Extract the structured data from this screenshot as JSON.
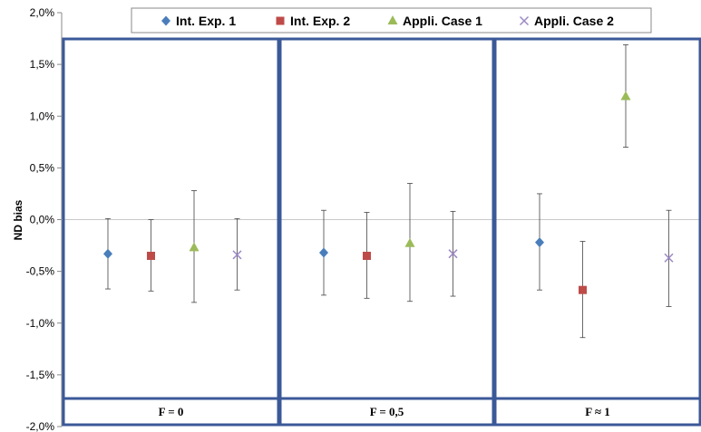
{
  "chart_data": {
    "type": "scatter",
    "ylabel": "ND bias",
    "ylim": [
      -0.02,
      0.02
    ],
    "yticks": [
      "2,0%",
      "1,5%",
      "1,0%",
      "0,5%",
      "0,0%",
      "-0,5%",
      "-1,0%",
      "-1,5%",
      "-2,0%"
    ],
    "ytick_values": [
      0.02,
      0.015,
      0.01,
      0.005,
      0.0,
      -0.005,
      -0.01,
      -0.015,
      -0.02
    ],
    "grid": false,
    "legend_position": "top",
    "groups": [
      "F = 0",
      "F = 0,5",
      "F ≈ 1"
    ],
    "series": [
      {
        "name": "Int. Exp. 1",
        "marker": "diamond",
        "color": "#4a7ebb",
        "values": [
          -0.0033,
          -0.0032,
          -0.0022
        ],
        "error_low": [
          -0.0067,
          -0.0073,
          -0.0068
        ],
        "error_high": [
          0.0001,
          0.0009,
          0.0025
        ]
      },
      {
        "name": "Int. Exp. 2",
        "marker": "square",
        "color": "#be4b48",
        "values": [
          -0.0035,
          -0.0035,
          -0.0068
        ],
        "error_low": [
          -0.0069,
          -0.0076,
          -0.0114
        ],
        "error_high": [
          0.0,
          0.0007,
          -0.0021
        ]
      },
      {
        "name": "Appli. Case 1",
        "marker": "triangle",
        "color": "#9bbb59",
        "values": [
          -0.0027,
          -0.0023,
          0.0119
        ],
        "error_low": [
          -0.008,
          -0.0079,
          0.007
        ],
        "error_high": [
          0.0028,
          0.0035,
          0.0169
        ]
      },
      {
        "name": "Appli. Case 2",
        "marker": "x",
        "color": "#9b88c4",
        "values": [
          -0.0034,
          -0.0033,
          -0.0037
        ],
        "error_low": [
          -0.0068,
          -0.0074,
          -0.0084
        ],
        "error_high": [
          0.0001,
          0.0008,
          0.0009
        ]
      }
    ]
  }
}
